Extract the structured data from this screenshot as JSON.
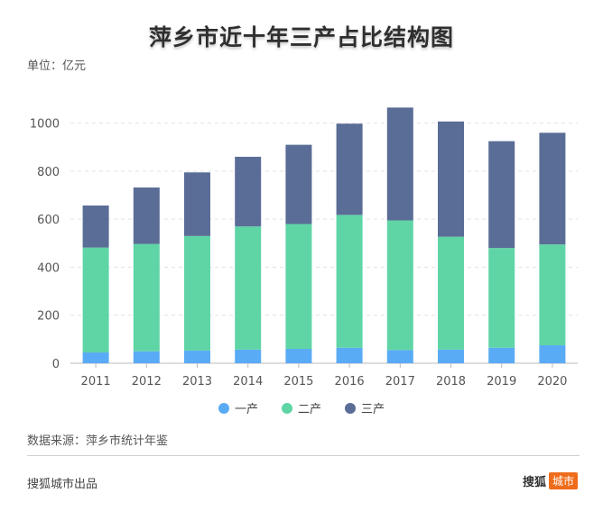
{
  "header": {
    "title": "萍乡市近十年三产占比结构图",
    "unit": "单位：亿元"
  },
  "footer": {
    "source": "数据来源：萍乡市统计年鉴",
    "producer": "搜狐城市出品",
    "brand_name": "搜狐",
    "brand_badge": "城市"
  },
  "colors": {
    "primary": "#5aabf5",
    "secondary": "#5fd5a6",
    "tertiary": "#5a6d96",
    "brand": "#ef6c1a"
  },
  "chart_data": {
    "type": "bar",
    "stacked": true,
    "categories": [
      "2011",
      "2012",
      "2013",
      "2014",
      "2015",
      "2016",
      "2017",
      "2018",
      "2019",
      "2020"
    ],
    "series": [
      {
        "name": "一产",
        "color": "#5aabf5",
        "values": [
          45,
          50,
          53,
          57,
          60,
          65,
          55,
          57,
          65,
          75
        ]
      },
      {
        "name": "二产",
        "color": "#5fd5a6",
        "values": [
          437,
          447,
          477,
          513,
          520,
          553,
          540,
          470,
          415,
          420
        ]
      },
      {
        "name": "三产",
        "color": "#5a6d96",
        "values": [
          175,
          235,
          265,
          290,
          330,
          380,
          470,
          480,
          445,
          465
        ]
      }
    ],
    "yticks": [
      0,
      200,
      400,
      600,
      800,
      1000
    ],
    "ylim": [
      0,
      1100
    ],
    "grid": true,
    "legend": "bottom-center"
  }
}
